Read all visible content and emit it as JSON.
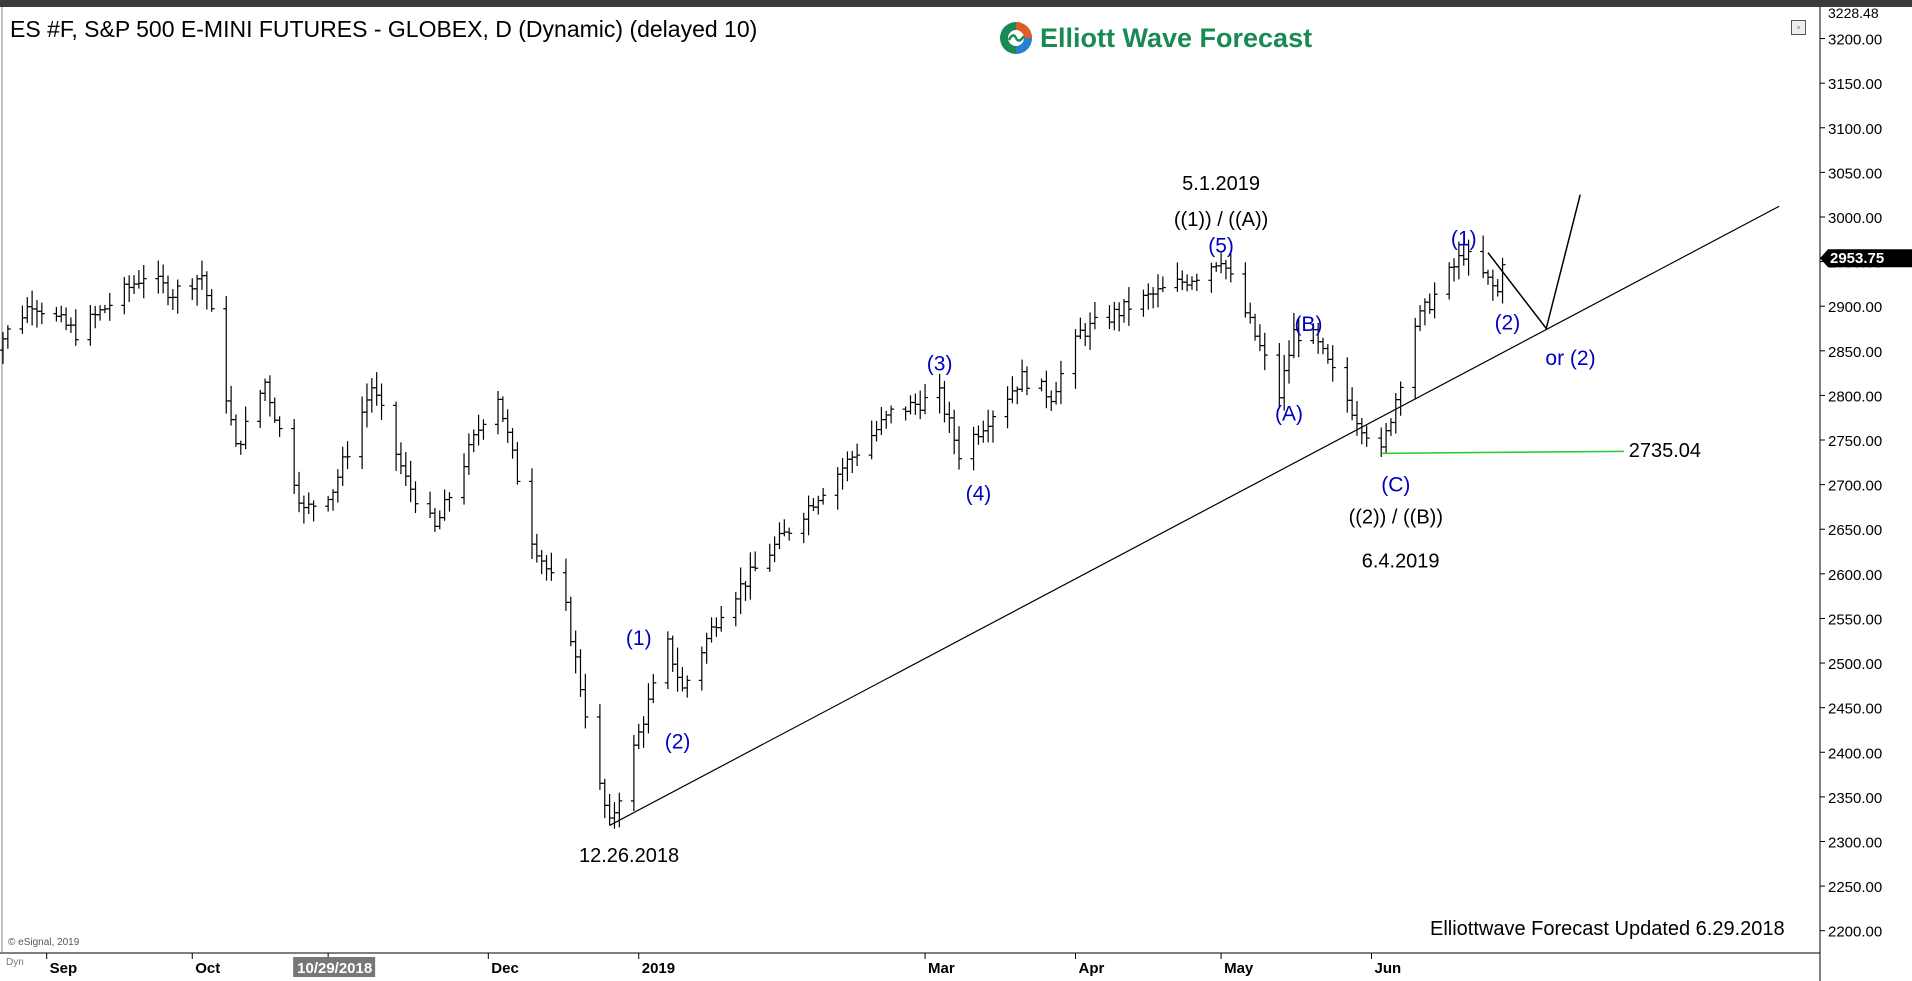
{
  "header": {
    "title": "ES #F, S&P 500 E-MINI FUTURES - GLOBEX, D (Dynamic) (delayed 10)",
    "logo_text": "Elliott Wave Forecast"
  },
  "footer": {
    "note": "Elliottwave Forecast Updated 6.29.2018",
    "copyright": "© eSignal, 2019",
    "dyn_label": "Dyn"
  },
  "colors": {
    "wave_label": "#0000c0",
    "bars": "#000000",
    "trendline": "#000000",
    "level_line": "#22cc22",
    "last_price_bg": "#000000",
    "logo_green": "#1a8a55"
  },
  "chart_data": {
    "type": "bar",
    "ylim": [
      2175,
      3232
    ],
    "yticks": [
      "3200.00",
      "3150.00",
      "3100.00",
      "3050.00",
      "3000.00",
      "2950.00",
      "2900.00",
      "2850.00",
      "2800.00",
      "2750.00",
      "2700.00",
      "2650.00",
      "2600.00",
      "2550.00",
      "2500.00",
      "2450.00",
      "2400.00",
      "2350.00",
      "2300.00",
      "2250.00",
      "2200.00"
    ],
    "top_price": "3228.48",
    "last_price": "2953.75",
    "x_start": "2018-08-23",
    "x_end": "2019-09-01",
    "xticks": [
      {
        "date": "2018-09-01",
        "label": "Sep"
      },
      {
        "date": "2018-10-01",
        "label": "Oct"
      },
      {
        "date": "2018-10-29",
        "label": "10/29/2018",
        "highlighted": true
      },
      {
        "date": "2018-12-01",
        "label": "Dec"
      },
      {
        "date": "2019-01-01",
        "label": "2019"
      },
      {
        "date": "2019-03-01",
        "label": "Mar"
      },
      {
        "date": "2019-04-01",
        "label": "Apr"
      },
      {
        "date": "2019-05-01",
        "label": "May"
      },
      {
        "date": "2019-06-01",
        "label": "Jun"
      }
    ],
    "path_points": [
      [
        "2018-08-20",
        2845
      ],
      [
        "2018-08-29",
        2905
      ],
      [
        "2018-09-07",
        2870
      ],
      [
        "2018-09-21",
        2935
      ],
      [
        "2018-09-27",
        2915
      ],
      [
        "2018-10-03",
        2935
      ],
      [
        "2018-10-05",
        2890
      ],
      [
        "2018-10-10",
        2740
      ],
      [
        "2018-10-16",
        2815
      ],
      [
        "2018-10-24",
        2670
      ],
      [
        "2018-10-30",
        2695
      ],
      [
        "2018-11-07",
        2810
      ],
      [
        "2018-11-14",
        2705
      ],
      [
        "2018-11-20",
        2650
      ],
      [
        "2018-11-30",
        2775
      ],
      [
        "2018-12-03",
        2800
      ],
      [
        "2018-12-10",
        2640
      ],
      [
        "2018-12-17",
        2560
      ],
      [
        "2018-12-24",
        2360
      ],
      [
        "2018-12-26",
        2318
      ],
      [
        "2019-01-03",
        2455
      ],
      [
        "2019-01-07",
        2520
      ],
      [
        "2019-01-10",
        2470
      ],
      [
        "2019-01-18",
        2560
      ],
      [
        "2019-02-08",
        2695
      ],
      [
        "2019-02-22",
        2780
      ],
      [
        "2019-03-04",
        2800
      ],
      [
        "2019-03-08",
        2735
      ],
      [
        "2019-03-21",
        2820
      ],
      [
        "2019-03-27",
        2800
      ],
      [
        "2019-04-02",
        2870
      ],
      [
        "2019-04-12",
        2900
      ],
      [
        "2019-04-26",
        2935
      ],
      [
        "2019-05-01",
        2955
      ],
      [
        "2019-05-07",
        2880
      ],
      [
        "2019-05-13",
        2800
      ],
      [
        "2019-05-16",
        2870
      ],
      [
        "2019-05-20",
        2865
      ],
      [
        "2019-05-29",
        2775
      ],
      [
        "2019-06-03",
        2735
      ],
      [
        "2019-06-10",
        2880
      ],
      [
        "2019-06-20",
        2960
      ],
      [
        "2019-06-27",
        2915
      ],
      [
        "2019-06-28",
        2953
      ]
    ],
    "annotations": [
      {
        "date": "2019-05-01",
        "price": 3038,
        "text": "5.1.2019",
        "color": "black"
      },
      {
        "date": "2019-05-01",
        "price": 2998,
        "text": "((1)) / ((A))",
        "color": "black"
      },
      {
        "date": "2019-05-01",
        "price": 2968,
        "text": "(5)",
        "color": "blue"
      },
      {
        "date": "2019-03-04",
        "price": 2836,
        "text": "(3)",
        "color": "blue"
      },
      {
        "date": "2019-03-12",
        "price": 2690,
        "text": "(4)",
        "color": "blue"
      },
      {
        "date": "2019-01-01",
        "price": 2528,
        "text": "(1)",
        "color": "blue"
      },
      {
        "date": "2019-01-09",
        "price": 2412,
        "text": "(2)",
        "color": "blue"
      },
      {
        "date": "2018-12-30",
        "price": 2285,
        "text": "12.26.2018",
        "color": "black"
      },
      {
        "date": "2019-05-19",
        "price": 2880,
        "text": "(B)",
        "color": "blue"
      },
      {
        "date": "2019-05-15",
        "price": 2780,
        "text": "(A)",
        "color": "blue"
      },
      {
        "date": "2019-06-06",
        "price": 2700,
        "text": "(C)",
        "color": "blue"
      },
      {
        "date": "2019-06-06",
        "price": 2664,
        "text": "((2)) / ((B))",
        "color": "black"
      },
      {
        "date": "2019-06-07",
        "price": 2615,
        "text": "6.4.2019",
        "color": "black"
      },
      {
        "date": "2019-06-20",
        "price": 2976,
        "text": "(1)",
        "color": "blue"
      },
      {
        "date": "2019-06-29",
        "price": 2882,
        "text": "(2)",
        "color": "blue"
      },
      {
        "date": "2019-07-12",
        "price": 2842,
        "text": "or (2)",
        "color": "blue"
      },
      {
        "date": "2019-07-24",
        "price": 2739,
        "text": "2735.04",
        "color": "black"
      }
    ],
    "trendline": [
      [
        "2018-12-26",
        2318
      ],
      [
        "2019-08-24",
        3012
      ]
    ],
    "level_line": {
      "from": "2019-06-03",
      "to": "2019-07-23",
      "price": 2735.04
    },
    "projection": [
      [
        "2019-06-25",
        2960
      ],
      [
        "2019-07-07",
        2875
      ],
      [
        "2019-07-14",
        3025
      ]
    ]
  }
}
